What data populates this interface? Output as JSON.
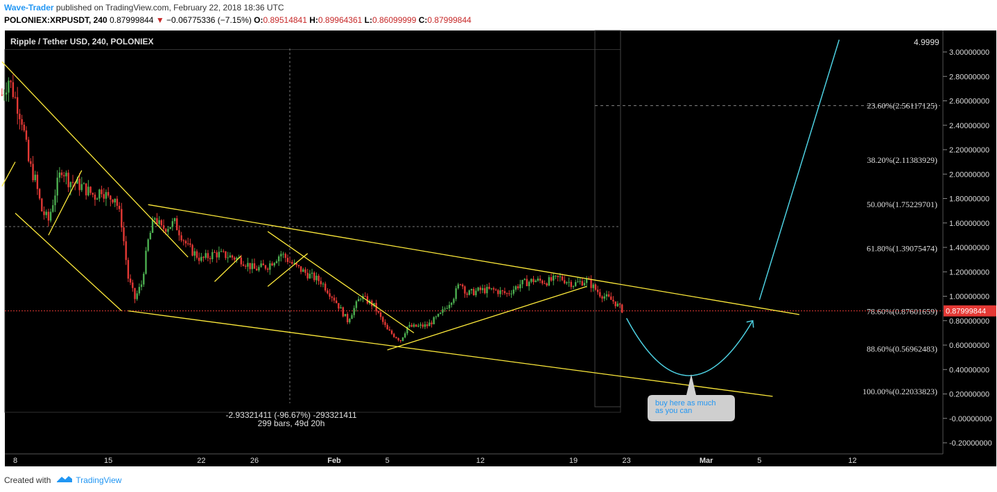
{
  "header": {
    "author": "Wave-Trader",
    "published": " published on TradingView.com, February 22, 2018 18:36 UTC",
    "symbol": "POLONIEX:XRPUSDT, 240",
    "last": "0.87999844",
    "change": "−0.06775336 (−7.15%)",
    "o_label": "O:",
    "o_value": "0.89514841",
    "h_label": "H:",
    "h_value": "0.89964361",
    "l_label": "L:",
    "l_value": "0.86099999",
    "c_label": "C:",
    "c_value": "0.87999844"
  },
  "footer": {
    "created_with": "Created with",
    "brand": "TradingView"
  },
  "colors": {
    "background": "#000000",
    "up": "#4caf50",
    "down": "#e53935",
    "trendline": "#ffeb3b",
    "projection": "#4dd0e1",
    "price_line": "#e53935",
    "author": "#2196f3"
  },
  "chart_data": {
    "type": "candlestick",
    "title": "Ripple / Tether USD, 240, POLONIEX",
    "ylim": [
      -0.25,
      3.1
    ],
    "y_ticks": [
      "3.00000000",
      "2.80000000",
      "2.60000000",
      "2.40000000",
      "2.20000000",
      "2.00000000",
      "1.80000000",
      "1.60000000",
      "1.40000000",
      "1.20000000",
      "1.00000000",
      "0.80000000",
      "0.60000000",
      "0.40000000",
      "0.20000000",
      "-0.00000000",
      "-0.20000000"
    ],
    "y_tick_values": [
      3.0,
      2.8,
      2.6,
      2.4,
      2.2,
      2.0,
      1.8,
      1.6,
      1.4,
      1.2,
      1.0,
      0.8,
      0.6,
      0.4,
      0.2,
      0.0,
      -0.2
    ],
    "x_ticks": [
      {
        "label": "8",
        "date": "2018-01-08"
      },
      {
        "label": "15",
        "date": "2018-01-15"
      },
      {
        "label": "22",
        "date": "2018-01-22"
      },
      {
        "label": "26",
        "date": "2018-01-26"
      },
      {
        "label": "Feb",
        "date": "2018-02-01",
        "bold": true
      },
      {
        "label": "5",
        "date": "2018-02-05"
      },
      {
        "label": "12",
        "date": "2018-02-12"
      },
      {
        "label": "19",
        "date": "2018-02-19"
      },
      {
        "label": "23",
        "date": "2018-02-23"
      },
      {
        "label": "Mar",
        "date": "2018-03-01",
        "bold": true
      },
      {
        "label": "5",
        "date": "2018-03-05"
      },
      {
        "label": "12",
        "date": "2018-03-12"
      }
    ],
    "last_price": 0.87999844,
    "last_price_label": "0.87999844",
    "top_right_value": "4.9999",
    "fib_levels": [
      {
        "label": "23.60%(2.56117125)",
        "value": 2.56117125
      },
      {
        "label": "38.20%(2.11383929)",
        "value": 2.11383929
      },
      {
        "label": "50.00%(1.75229701)",
        "value": 1.75229701
      },
      {
        "label": "61.80%(1.39075474)",
        "value": 1.39075474
      },
      {
        "label": "78.60%(0.87601659)",
        "value": 0.87601659
      },
      {
        "label": "88.60%(0.56962483)",
        "value": 0.56962483
      },
      {
        "label": "100.00%(0.22033823)",
        "value": 0.22033823
      }
    ],
    "measure": {
      "line1": "-2.93321411 (-96.67%) -293321411",
      "line2": "299 bars, 49d 20h"
    },
    "callout": {
      "text_line1": "buy here as much",
      "text_line2": "as you can"
    },
    "price_anchors": [
      [
        "2018-01-07",
        2.65
      ],
      [
        "2018-01-07T12:00",
        2.78
      ],
      [
        "2018-01-08",
        2.62
      ],
      [
        "2018-01-08T12:00",
        2.45
      ],
      [
        "2018-01-09",
        2.1
      ],
      [
        "2018-01-09T12:00",
        1.95
      ],
      [
        "2018-01-10",
        1.7
      ],
      [
        "2018-01-10T12:00",
        1.62
      ],
      [
        "2018-01-11",
        1.85
      ],
      [
        "2018-01-11T12:00",
        2.05
      ],
      [
        "2018-01-12",
        1.95
      ],
      [
        "2018-01-13",
        1.9
      ],
      [
        "2018-01-14",
        1.82
      ],
      [
        "2018-01-14T12:00",
        1.88
      ],
      [
        "2018-01-15",
        1.8
      ],
      [
        "2018-01-15T12:00",
        1.82
      ],
      [
        "2018-01-16",
        1.6
      ],
      [
        "2018-01-16T12:00",
        1.15
      ],
      [
        "2018-01-17",
        0.98
      ],
      [
        "2018-01-17T12:00",
        1.1
      ],
      [
        "2018-01-18",
        1.45
      ],
      [
        "2018-01-18T12:00",
        1.65
      ],
      [
        "2018-01-19",
        1.55
      ],
      [
        "2018-01-20",
        1.6
      ],
      [
        "2018-01-21",
        1.4
      ],
      [
        "2018-01-22",
        1.3
      ],
      [
        "2018-01-23",
        1.35
      ],
      [
        "2018-01-24",
        1.33
      ],
      [
        "2018-01-25",
        1.3
      ],
      [
        "2018-01-26",
        1.22
      ],
      [
        "2018-01-27",
        1.25
      ],
      [
        "2018-01-28",
        1.35
      ],
      [
        "2018-01-29",
        1.25
      ],
      [
        "2018-01-30",
        1.18
      ],
      [
        "2018-01-31",
        1.12
      ],
      [
        "2018-02-01",
        0.98
      ],
      [
        "2018-02-02",
        0.8
      ],
      [
        "2018-02-02T12:00",
        0.9
      ],
      [
        "2018-02-03",
        1.0
      ],
      [
        "2018-02-04",
        0.92
      ],
      [
        "2018-02-05",
        0.72
      ],
      [
        "2018-02-06",
        0.64
      ],
      [
        "2018-02-06T12:00",
        0.75
      ],
      [
        "2018-02-07",
        0.75
      ],
      [
        "2018-02-08",
        0.76
      ],
      [
        "2018-02-09",
        0.85
      ],
      [
        "2018-02-10",
        1.0
      ],
      [
        "2018-02-10T12:00",
        1.12
      ],
      [
        "2018-02-11",
        1.02
      ],
      [
        "2018-02-12",
        1.05
      ],
      [
        "2018-02-13",
        1.05
      ],
      [
        "2018-02-14",
        1.02
      ],
      [
        "2018-02-15",
        1.1
      ],
      [
        "2018-02-16",
        1.13
      ],
      [
        "2018-02-17",
        1.12
      ],
      [
        "2018-02-18",
        1.15
      ],
      [
        "2018-02-19",
        1.1
      ],
      [
        "2018-02-20",
        1.13
      ],
      [
        "2018-02-21",
        1.02
      ],
      [
        "2018-02-22",
        0.96
      ],
      [
        "2018-02-22T18:00",
        0.88
      ]
    ],
    "trendlines": [
      {
        "from": [
          "2018-01-07",
          2.92
        ],
        "to": [
          "2018-01-21",
          1.32
        ]
      },
      {
        "from": [
          "2018-01-08",
          1.68
        ],
        "to": [
          "2018-01-16",
          0.88
        ]
      },
      {
        "from": [
          "2018-01-16T12:00",
          0.88
        ],
        "to": [
          "2018-03-06",
          0.18
        ]
      },
      {
        "from": [
          "2018-01-18",
          1.75
        ],
        "to": [
          "2018-03-08",
          0.85
        ]
      },
      {
        "from": [
          "2018-01-07",
          1.9
        ],
        "to": [
          "2018-01-08",
          2.1
        ]
      },
      {
        "from": [
          "2018-01-10T12:00",
          1.5
        ],
        "to": [
          "2018-01-13",
          2.03
        ]
      },
      {
        "from": [
          "2018-01-23",
          1.12
        ],
        "to": [
          "2018-01-25",
          1.33
        ]
      },
      {
        "from": [
          "2018-01-27",
          1.08
        ],
        "to": [
          "2018-01-30",
          1.35
        ]
      },
      {
        "from": [
          "2018-01-27",
          1.53
        ],
        "to": [
          "2018-02-07",
          0.7
        ]
      },
      {
        "from": [
          "2018-02-05",
          0.56
        ],
        "to": [
          "2018-02-20",
          1.08
        ]
      }
    ],
    "projection_curve": [
      [
        "2018-02-23",
        0.82
      ],
      [
        "2018-02-27T16:00",
        0.35
      ],
      [
        "2018-03-04T12:00",
        0.8
      ]
    ],
    "projection_line": {
      "from": [
        "2018-03-05",
        0.97
      ],
      "to": [
        "2018-03-11",
        3.1
      ]
    }
  }
}
